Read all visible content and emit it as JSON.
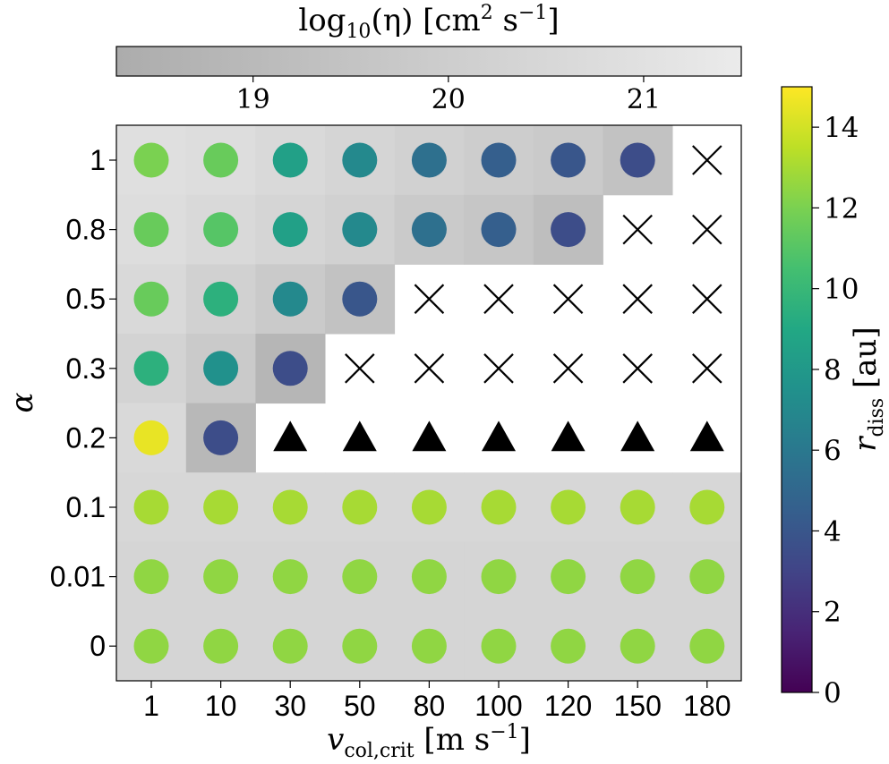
{
  "chart_data": {
    "type": "heatmap",
    "xlabel_parts": {
      "main": "v",
      "sub": "col,crit",
      "unit": " [m s",
      "sup": "−1",
      "close": "]"
    },
    "ylabel": "α",
    "x_categories": [
      "1",
      "10",
      "30",
      "50",
      "80",
      "100",
      "120",
      "150",
      "180"
    ],
    "y_categories": [
      "1",
      "0.8",
      "0.5",
      "0.3",
      "0.2",
      "0.1",
      "0.01",
      "0"
    ],
    "r_diss": [
      [
        12.0,
        11.5,
        8.5,
        7.0,
        5.5,
        4.5,
        4.0,
        3.5,
        null
      ],
      [
        11.5,
        11.0,
        8.5,
        7.0,
        5.5,
        4.5,
        3.5,
        null,
        null
      ],
      [
        11.5,
        9.5,
        7.0,
        4.0,
        null,
        null,
        null,
        null,
        null
      ],
      [
        9.5,
        7.5,
        3.5,
        null,
        null,
        null,
        null,
        null,
        null
      ],
      [
        14.5,
        3.5,
        null,
        null,
        null,
        null,
        null,
        null,
        null
      ],
      [
        13.0,
        13.0,
        13.0,
        13.0,
        13.0,
        13.0,
        13.0,
        13.0,
        13.0
      ],
      [
        12.5,
        12.5,
        12.5,
        12.5,
        12.5,
        12.5,
        12.5,
        12.5,
        12.5
      ],
      [
        12.5,
        12.5,
        12.5,
        12.5,
        12.5,
        12.5,
        12.5,
        12.5,
        12.5
      ]
    ],
    "markers": [
      [
        "circle",
        "circle",
        "circle",
        "circle",
        "circle",
        "circle",
        "circle",
        "circle",
        "cross"
      ],
      [
        "circle",
        "circle",
        "circle",
        "circle",
        "circle",
        "circle",
        "circle",
        "cross",
        "cross"
      ],
      [
        "circle",
        "circle",
        "circle",
        "circle",
        "cross",
        "cross",
        "cross",
        "cross",
        "cross"
      ],
      [
        "circle",
        "circle",
        "circle",
        "cross",
        "cross",
        "cross",
        "cross",
        "cross",
        "cross"
      ],
      [
        "circle",
        "circle",
        "triangle",
        "triangle",
        "triangle",
        "triangle",
        "triangle",
        "triangle",
        "triangle"
      ],
      [
        "circle",
        "circle",
        "circle",
        "circle",
        "circle",
        "circle",
        "circle",
        "circle",
        "circle"
      ],
      [
        "circle",
        "circle",
        "circle",
        "circle",
        "circle",
        "circle",
        "circle",
        "circle",
        "circle"
      ],
      [
        "circle",
        "circle",
        "circle",
        "circle",
        "circle",
        "circle",
        "circle",
        "circle",
        "circle"
      ]
    ],
    "log10_eta": [
      [
        20.9,
        20.8,
        20.6,
        20.4,
        20.2,
        20.0,
        19.8,
        19.4,
        null
      ],
      [
        20.8,
        20.6,
        20.4,
        20.2,
        19.8,
        19.6,
        19.2,
        null,
        null
      ],
      [
        20.6,
        20.2,
        19.8,
        19.4,
        null,
        null,
        null,
        null,
        null
      ],
      [
        20.3,
        19.8,
        18.8,
        null,
        null,
        null,
        null,
        null,
        null
      ],
      [
        20.6,
        18.9,
        null,
        null,
        null,
        null,
        null,
        null,
        null
      ],
      [
        20.5,
        20.5,
        20.5,
        20.5,
        20.5,
        20.5,
        20.5,
        20.5,
        20.5
      ],
      [
        20.4,
        20.4,
        20.4,
        20.4,
        20.4,
        20.4,
        20.4,
        20.4,
        20.4
      ],
      [
        20.4,
        20.4,
        20.4,
        20.4,
        20.4,
        20.4,
        20.4,
        20.4,
        20.4
      ]
    ],
    "eta_colorbar": {
      "label_parts": {
        "pre": "log",
        "sub": "10",
        "mid": "(η) [cm",
        "sup1": "2",
        "mid2": " s",
        "sup2": "−1",
        "close": "]"
      },
      "range": [
        18.3,
        21.5
      ],
      "ticks": [
        "19",
        "20",
        "21"
      ],
      "tick_values": [
        19,
        20,
        21
      ],
      "colors": [
        "#acacac",
        "#ebebeb"
      ]
    },
    "r_colorbar": {
      "label_main": "r",
      "label_sub": "diss",
      "label_unit": " [au]",
      "range": [
        0,
        15
      ],
      "ticks": [
        "0",
        "2",
        "4",
        "6",
        "8",
        "10",
        "12",
        "14"
      ],
      "tick_values": [
        0,
        2,
        4,
        6,
        8,
        10,
        12,
        14
      ],
      "cmap": "viridis"
    }
  }
}
